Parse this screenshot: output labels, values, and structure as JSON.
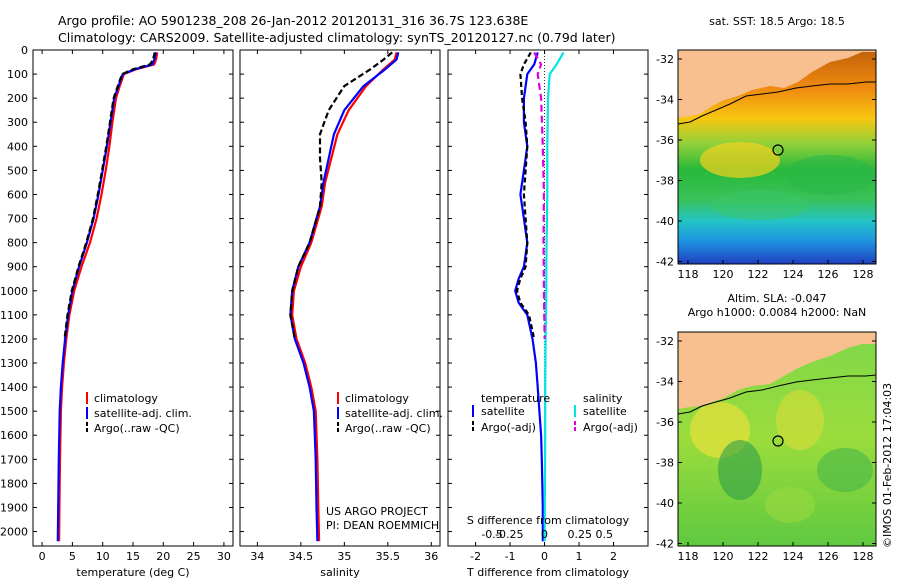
{
  "header": {
    "title_line1": "Argo profile: AO 5901238_208 26-Jan-2012 20120131_316 36.7S 123.638E",
    "title_line2": "Climatology: CARS2009. Satellite-adjusted climatology: synTS_20120127.nc (0.79d later)"
  },
  "colors": {
    "climatology": "#ff0000",
    "satellite": "#0000ff",
    "argo": "#000000",
    "sal_satellite": "#00e5e5",
    "sal_argo": "#e000e0",
    "land": "#f7c08e"
  },
  "depth_axis": {
    "ticks": [
      0,
      100,
      200,
      300,
      400,
      500,
      600,
      700,
      800,
      900,
      1000,
      1100,
      1200,
      1300,
      1400,
      1500,
      1600,
      1700,
      1800,
      1900,
      2000
    ],
    "range": [
      0,
      2060
    ]
  },
  "chart_data": [
    {
      "type": "line",
      "id": "temperature",
      "xlabel": "temperature (deg C)",
      "xlim": [
        -1.5,
        31.5
      ],
      "xticks": [
        0,
        5,
        10,
        15,
        20,
        25,
        30
      ],
      "ylim": [
        0,
        2060
      ],
      "legend": [
        "climatology",
        "satellite-adj. clim.",
        "Argo(..raw -QC)"
      ],
      "series": [
        {
          "name": "climatology",
          "color": "#ff0000",
          "dash": "",
          "x": [
            19.0,
            18.8,
            18.5,
            15.5,
            13.5,
            12.8,
            12.2,
            11.6,
            11.1,
            10.5,
            9.8,
            9.0,
            7.9,
            6.5,
            5.3,
            4.5,
            4.0,
            3.6,
            3.3,
            3.1,
            2.95,
            2.85,
            2.8
          ],
          "y": [
            10,
            40,
            60,
            80,
            100,
            150,
            200,
            300,
            400,
            500,
            600,
            700,
            800,
            900,
            1000,
            1100,
            1200,
            1300,
            1400,
            1500,
            1700,
            1900,
            2040
          ]
        },
        {
          "name": "satellite-adj. clim.",
          "color": "#0000ff",
          "dash": "",
          "x": [
            18.8,
            18.5,
            18.2,
            15.3,
            13.3,
            12.6,
            11.9,
            11.3,
            10.7,
            10.0,
            9.3,
            8.5,
            7.4,
            6.1,
            5.0,
            4.3,
            3.8,
            3.4,
            3.1,
            2.9,
            2.75,
            2.65,
            2.6
          ],
          "y": [
            10,
            40,
            60,
            80,
            100,
            150,
            200,
            300,
            400,
            500,
            600,
            700,
            800,
            900,
            1000,
            1100,
            1200,
            1300,
            1400,
            1500,
            1700,
            1900,
            2040
          ]
        },
        {
          "name": "Argo(..raw -QC)",
          "color": "#000000",
          "dash": "6 3",
          "x": [
            18.6,
            18.3,
            17.8,
            15.0,
            13.2,
            12.5,
            11.8,
            11.2,
            10.6,
            9.9,
            9.2,
            8.4,
            7.3,
            6.0,
            4.9,
            4.2,
            3.7
          ],
          "y": [
            10,
            40,
            60,
            80,
            100,
            150,
            200,
            300,
            400,
            500,
            600,
            700,
            800,
            900,
            1000,
            1100,
            1200
          ]
        }
      ]
    },
    {
      "type": "line",
      "id": "salinity",
      "xlabel": "salinity",
      "xlim": [
        33.8,
        36.1
      ],
      "xticks": [
        34,
        34.5,
        35,
        35.5,
        36
      ],
      "ylim": [
        0,
        2060
      ],
      "legend": [
        "climatology",
        "satellite-adj. clim.",
        "Argo(..raw -QC)"
      ],
      "series": [
        {
          "name": "climatology",
          "color": "#ff0000",
          "dash": "",
          "x": [
            35.6,
            35.58,
            35.45,
            35.25,
            35.05,
            34.92,
            34.85,
            34.78,
            34.74,
            34.62,
            34.5,
            34.42,
            34.4,
            34.45,
            34.55,
            34.62,
            34.67,
            34.69,
            34.7,
            34.71
          ],
          "y": [
            10,
            40,
            80,
            150,
            250,
            350,
            450,
            550,
            650,
            800,
            900,
            1000,
            1100,
            1200,
            1300,
            1400,
            1500,
            1700,
            1900,
            2040
          ]
        },
        {
          "name": "satellite-adj. clim.",
          "color": "#0000ff",
          "dash": "",
          "x": [
            35.62,
            35.6,
            35.47,
            35.22,
            35.0,
            34.88,
            34.82,
            34.76,
            34.72,
            34.6,
            34.47,
            34.4,
            34.38,
            34.43,
            34.53,
            34.6,
            34.65,
            34.67,
            34.68,
            34.69
          ],
          "y": [
            10,
            40,
            80,
            150,
            250,
            350,
            450,
            550,
            650,
            800,
            900,
            1000,
            1100,
            1200,
            1300,
            1400,
            1500,
            1700,
            1900,
            2040
          ]
        },
        {
          "name": "Argo(..raw -QC)",
          "color": "#000000",
          "dash": "6 3",
          "x": [
            35.55,
            35.45,
            35.3,
            35.0,
            34.82,
            34.72,
            34.72,
            34.74,
            34.72,
            34.6,
            34.47,
            34.4,
            34.38,
            34.43
          ],
          "y": [
            10,
            40,
            80,
            150,
            250,
            350,
            450,
            550,
            650,
            800,
            900,
            1000,
            1100,
            1200
          ]
        }
      ]
    },
    {
      "type": "line",
      "id": "difference",
      "xlabel": "T difference from climatology",
      "xlabel_top": "S difference from climatology",
      "xlim": [
        -2.8,
        3.0
      ],
      "xticks": [
        -2,
        -1,
        0,
        1,
        2
      ],
      "xticks_top": [
        "-0.5",
        "-0.25",
        "0",
        "0.25",
        "0.5"
      ],
      "ylim": [
        0,
        2060
      ],
      "legend": [
        "temperature",
        "satellite",
        "Argo(-adj)",
        "salinity",
        "satellite",
        "Argo(-adj)"
      ],
      "series": [
        {
          "name": "temperature satellite",
          "color": "#0000ff",
          "dash": "",
          "x": [
            -0.2,
            -0.3,
            -0.5,
            -0.6,
            -0.6,
            -0.5,
            -0.6,
            -0.7,
            -0.6,
            -0.5,
            -0.6,
            -0.75,
            -0.85,
            -0.75,
            -0.5,
            -0.35,
            -0.25,
            -0.2,
            -0.15,
            -0.1,
            -0.08,
            -0.05,
            -0.05
          ],
          "y": [
            10,
            60,
            100,
            200,
            300,
            400,
            500,
            600,
            700,
            800,
            900,
            950,
            1000,
            1050,
            1100,
            1200,
            1300,
            1400,
            1500,
            1600,
            1700,
            1900,
            2040
          ]
        },
        {
          "name": "temperature Argo(-adj)",
          "color": "#000000",
          "dash": "5 3",
          "x": [
            -0.4,
            -0.6,
            -0.7,
            -0.65,
            -0.55,
            -0.5,
            -0.55,
            -0.6,
            -0.55,
            -0.5,
            -0.55,
            -0.7,
            -0.8,
            -0.7,
            -0.45,
            -0.3
          ],
          "y": [
            10,
            60,
            100,
            200,
            300,
            400,
            500,
            600,
            700,
            800,
            900,
            950,
            1000,
            1050,
            1100,
            1200
          ]
        },
        {
          "name": "salinity satellite",
          "color": "#00e5e5",
          "dash": "",
          "x": [
            0.55,
            0.35,
            0.15,
            0.1,
            0.08,
            0.08,
            0.06,
            0.05,
            0.05,
            0.04,
            0.03,
            0.02,
            0.02,
            0.0
          ],
          "y": [
            10,
            60,
            100,
            200,
            400,
            600,
            800,
            900,
            1000,
            1100,
            1200,
            1400,
            1600,
            2040
          ]
        },
        {
          "name": "salinity Argo(-adj)",
          "color": "#e000e0",
          "dash": "7 4",
          "x": [
            -0.3,
            -0.1,
            -0.2,
            -0.1,
            -0.05,
            -0.02,
            -0.03,
            -0.02,
            0.0
          ],
          "y": [
            10,
            60,
            100,
            200,
            400,
            600,
            800,
            1000,
            1200
          ]
        }
      ]
    }
  ],
  "maps": {
    "top": {
      "title": "sat. SST: 18.5  Argo: 18.5",
      "yticks": [
        "-32",
        "-34",
        "-36",
        "-38",
        "-40",
        "-42"
      ],
      "xticks": [
        "118",
        "120",
        "122",
        "124",
        "126",
        "128"
      ],
      "float_lon": 123.638,
      "float_lat": -36.7
    },
    "bottom": {
      "title_line1": "Altim. SLA: -0.047",
      "title_line2": "Argo h1000: 0.0084  h2000: NaN",
      "yticks": [
        "-32",
        "-34",
        "-36",
        "-38",
        "-40",
        "-42"
      ],
      "xticks": [
        "118",
        "120",
        "122",
        "124",
        "126",
        "128"
      ],
      "float_lon": 123.638,
      "float_lat": -36.7
    }
  },
  "annotations": {
    "project": "US ARGO PROJECT",
    "pi": "PI: DEAN ROEMMICH",
    "watermark": "©IMOS 01-Feb-2012 17:04:03"
  }
}
